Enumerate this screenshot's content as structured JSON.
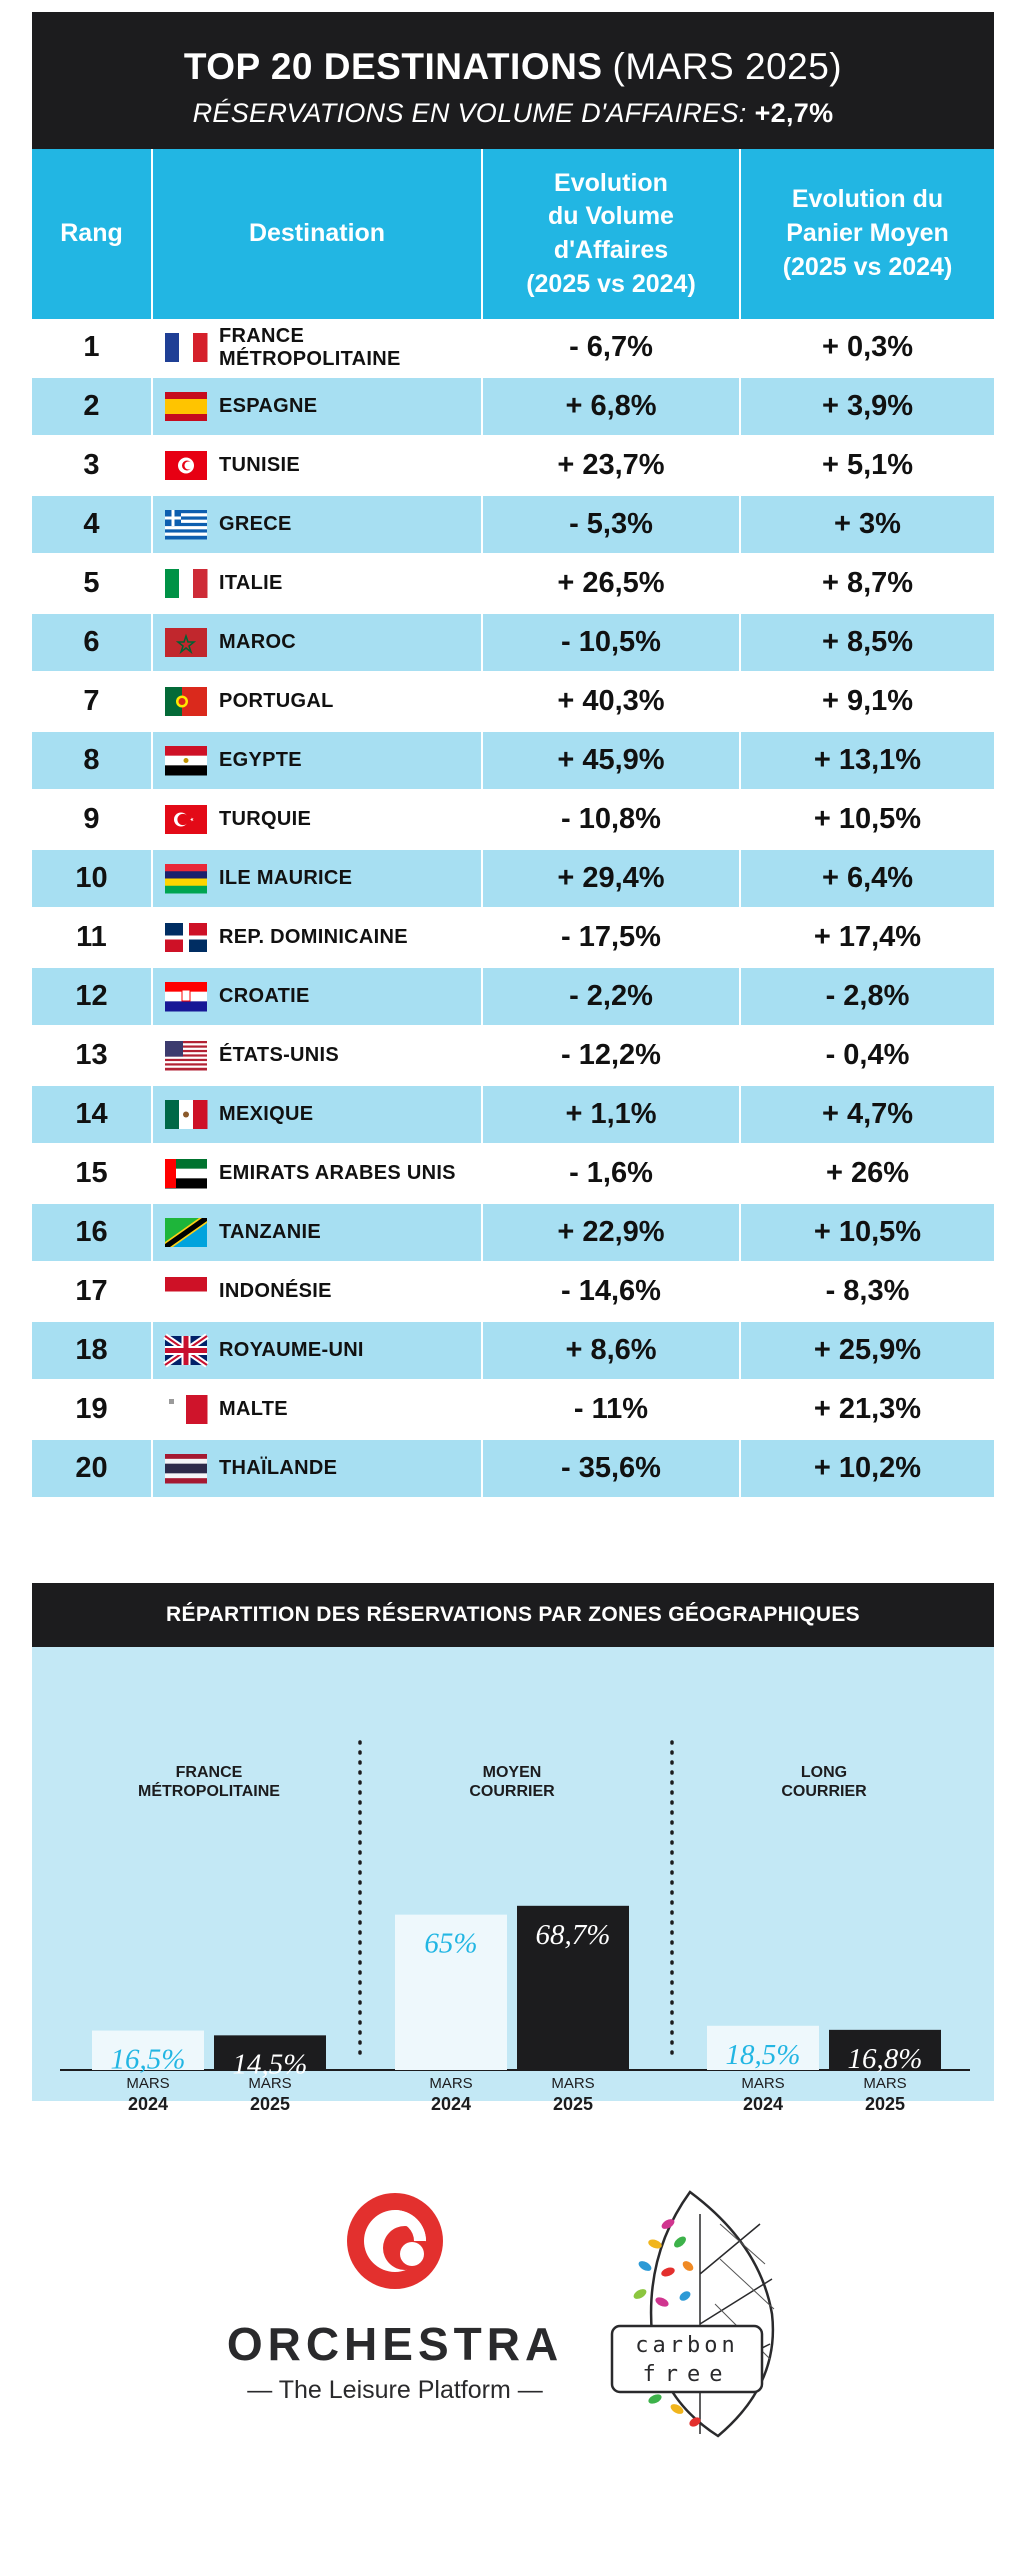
{
  "header": {
    "title": "TOP 20 DESTINATIONS",
    "period": "(MARS 2025)",
    "subtitle": "RÉSERVATIONS EN VOLUME D'AFFAIRES:",
    "subtitle_value": "+2,7%"
  },
  "table": {
    "headers": [
      "Rang",
      "Destination",
      "Evolution du Volume d'Affaires (2025 vs 2024)",
      "Evolution du Panier Moyen (2025 vs 2024)"
    ],
    "header_lines": {
      "volume": [
        "Evolution",
        "du Volume",
        "d'Affaires",
        "(2025 vs 2024)"
      ],
      "panier": [
        "Evolution du",
        "Panier Moyen",
        "(2025 vs 2024)"
      ]
    },
    "rows": [
      {
        "rank": "1",
        "flag": "france-flag-icon",
        "destination": "FRANCE MÉTROPOLITAINE",
        "volume": "- 6,7%",
        "panier": "+ 0,3%"
      },
      {
        "rank": "2",
        "flag": "spain-flag-icon",
        "destination": "ESPAGNE",
        "volume": "+ 6,8%",
        "panier": "+ 3,9%"
      },
      {
        "rank": "3",
        "flag": "tunisia-flag-icon",
        "destination": "TUNISIE",
        "volume": "+ 23,7%",
        "panier": "+ 5,1%"
      },
      {
        "rank": "4",
        "flag": "greece-flag-icon",
        "destination": "GRECE",
        "volume": "- 5,3%",
        "panier": "+ 3%"
      },
      {
        "rank": "5",
        "flag": "italy-flag-icon",
        "destination": "ITALIE",
        "volume": "+ 26,5%",
        "panier": "+ 8,7%"
      },
      {
        "rank": "6",
        "flag": "morocco-flag-icon",
        "destination": "MAROC",
        "volume": "- 10,5%",
        "panier": "+ 8,5%"
      },
      {
        "rank": "7",
        "flag": "portugal-flag-icon",
        "destination": "PORTUGAL",
        "volume": "+ 40,3%",
        "panier": "+ 9,1%"
      },
      {
        "rank": "8",
        "flag": "egypt-flag-icon",
        "destination": "EGYPTE",
        "volume": "+ 45,9%",
        "panier": "+ 13,1%"
      },
      {
        "rank": "9",
        "flag": "turkey-flag-icon",
        "destination": "TURQUIE",
        "volume": "- 10,8%",
        "panier": "+ 10,5%"
      },
      {
        "rank": "10",
        "flag": "mauritius-flag-icon",
        "destination": "ILE MAURICE",
        "volume": "+ 29,4%",
        "panier": "+ 6,4%"
      },
      {
        "rank": "11",
        "flag": "dominican-republic-flag-icon",
        "destination": "REP. DOMINICAINE",
        "volume": "- 17,5%",
        "panier": "+ 17,4%"
      },
      {
        "rank": "12",
        "flag": "croatia-flag-icon",
        "destination": "CROATIE",
        "volume": "- 2,2%",
        "panier": "- 2,8%"
      },
      {
        "rank": "13",
        "flag": "usa-flag-icon",
        "destination": "ÉTATS-UNIS",
        "volume": "- 12,2%",
        "panier": "- 0,4%"
      },
      {
        "rank": "14",
        "flag": "mexico-flag-icon",
        "destination": "MEXIQUE",
        "volume": "+ 1,1%",
        "panier": "+ 4,7%"
      },
      {
        "rank": "15",
        "flag": "uae-flag-icon",
        "destination": "EMIRATS ARABES UNIS",
        "volume": "- 1,6%",
        "panier": "+ 26%"
      },
      {
        "rank": "16",
        "flag": "tanzania-flag-icon",
        "destination": "TANZANIE",
        "volume": "+ 22,9%",
        "panier": "+ 10,5%"
      },
      {
        "rank": "17",
        "flag": "indonesia-flag-icon",
        "destination": "INDONÉSIE",
        "volume": "- 14,6%",
        "panier": "- 8,3%"
      },
      {
        "rank": "18",
        "flag": "uk-flag-icon",
        "destination": "ROYAUME-UNI",
        "volume": "+ 8,6%",
        "panier": "+ 25,9%"
      },
      {
        "rank": "19",
        "flag": "malta-flag-icon",
        "destination": "MALTE",
        "volume": "- 11%",
        "panier": "+ 21,3%"
      },
      {
        "rank": "20",
        "flag": "thailand-flag-icon",
        "destination": "THAÏLANDE",
        "volume": "- 35,6%",
        "panier": "+ 10,2%"
      }
    ]
  },
  "chart_data": {
    "type": "bar",
    "title": "RÉPARTITION DES RÉSERVATIONS PAR ZONES GÉOGRAPHIQUES",
    "groups": [
      {
        "name_lines": [
          "FRANCE",
          "MÉTROPOLITAINE"
        ],
        "values": [
          16.5,
          14.5
        ],
        "labels": [
          "16,5%",
          "14,5%"
        ]
      },
      {
        "name_lines": [
          "MOYEN",
          "COURRIER"
        ],
        "values": [
          65,
          68.7
        ],
        "labels": [
          "65%",
          "68,7%"
        ]
      },
      {
        "name_lines": [
          "LONG",
          "COURRIER"
        ],
        "values": [
          18.5,
          16.8
        ],
        "labels": [
          "18,5%",
          "16,8%"
        ]
      }
    ],
    "series": [
      {
        "name_lines": [
          "MARS",
          "2024"
        ],
        "color": "#eef8fc",
        "label_color": "#22b6e3"
      },
      {
        "name_lines": [
          "MARS",
          "2025"
        ],
        "color": "#1c1c1e",
        "label_color": "#ffffff"
      }
    ]
  },
  "footer": {
    "brand": "ORCHESTRA",
    "tagline": "— The Leisure Platform —",
    "carbon_word1": "carbon",
    "carbon_word2": "free"
  },
  "colors": {
    "accent_blue": "#22b6e3",
    "row_blue": "#a7dff2",
    "dark": "#1c1c1e",
    "panel": "#c3e8f5",
    "brand_red": "#e3302e"
  }
}
